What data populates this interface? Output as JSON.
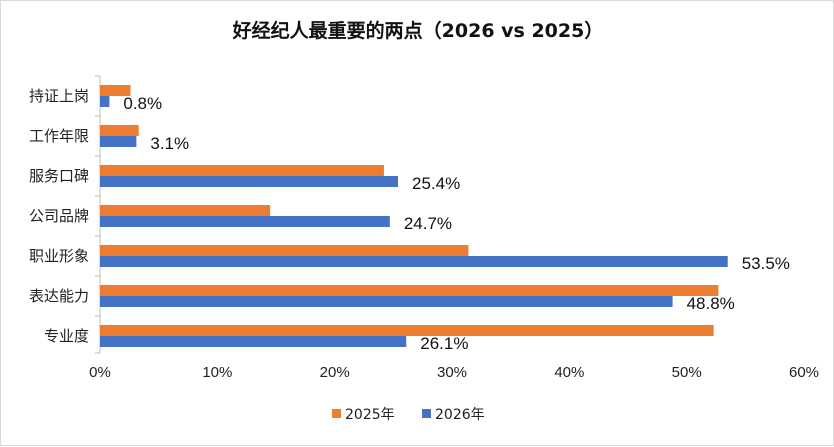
{
  "chart_data": {
    "type": "bar",
    "orientation": "horizontal",
    "title": "好经纪人最重要的两点（2026 vs 2025）",
    "categories": [
      "持证上岗",
      "工作年限",
      "服务口碑",
      "公司品牌",
      "职业形象",
      "表达能力",
      "专业度"
    ],
    "series": [
      {
        "name": "2025年",
        "color": "#ED7D31",
        "values": [
          2.6,
          3.3,
          24.2,
          14.5,
          31.4,
          52.7,
          52.3
        ]
      },
      {
        "name": "2026年",
        "color": "#4472C4",
        "values": [
          0.8,
          3.1,
          25.4,
          24.7,
          53.5,
          48.8,
          26.1
        ]
      }
    ],
    "data_labels": [
      "0.8%",
      "3.1%",
      "25.4%",
      "24.7%",
      "53.5%",
      "48.8%",
      "26.1%"
    ],
    "xlim": [
      0,
      60
    ],
    "x_ticks": [
      0,
      10,
      20,
      30,
      40,
      50,
      60
    ],
    "x_tick_labels": [
      "0%",
      "10%",
      "20%",
      "30%",
      "40%",
      "50%",
      "60%"
    ],
    "grid": false,
    "legend_position": "bottom"
  }
}
